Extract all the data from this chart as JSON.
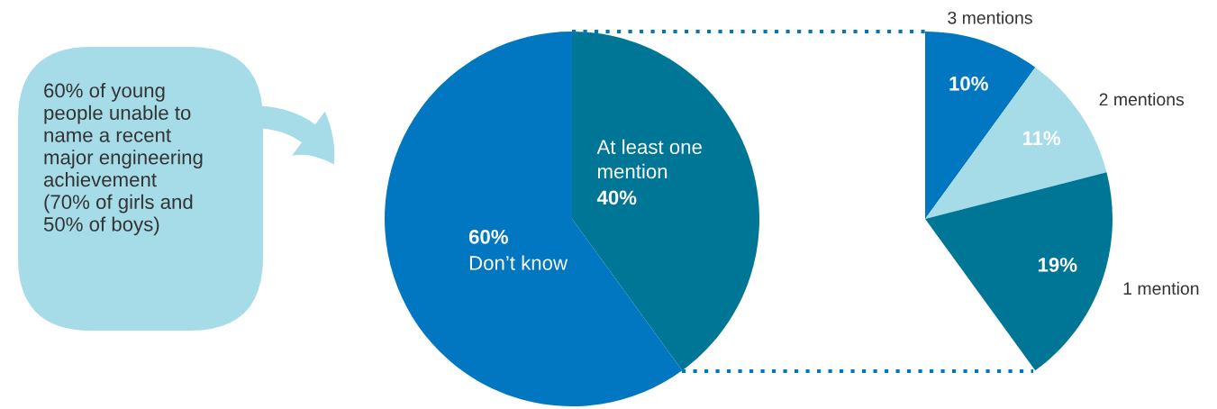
{
  "chart_data": [
    {
      "type": "pie",
      "categories": [
        "At least one\nmention",
        "Don’t know"
      ],
      "values": [
        40,
        60
      ],
      "value_labels": [
        "40%",
        "60%"
      ],
      "colors": [
        "#007696",
        "#0077c0"
      ],
      "annotations": [
        "60% of young\npeople unable to\nname a recent\nmajor engineering\nachievement\n(70% of girls and\n50% of boys)"
      ]
    },
    {
      "type": "pie",
      "categories": [
        "3 mentions",
        "2 mentions",
        "1 mention"
      ],
      "values": [
        10,
        11,
        19
      ],
      "value_labels": [
        "10%",
        "11%",
        "19%"
      ],
      "colors": [
        "#0077c0",
        "#a6dce8",
        "#007696"
      ]
    }
  ]
}
